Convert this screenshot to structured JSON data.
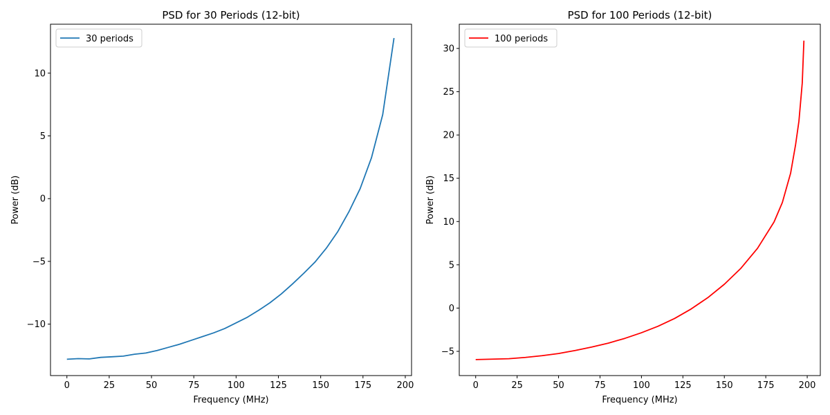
{
  "chart_data": [
    {
      "type": "line",
      "title": "PSD for 30 Periods (12-bit)",
      "xlabel": "Frequency (MHz)",
      "ylabel": "Power (dB)",
      "xlim": [
        -9.7,
        203.7
      ],
      "ylim": [
        -14.1,
        13.9
      ],
      "xticks": [
        0,
        25,
        50,
        75,
        100,
        125,
        150,
        175,
        200
      ],
      "yticks": [
        -10,
        -5,
        0,
        5,
        10
      ],
      "xtick_labels": [
        "0",
        "25",
        "50",
        "75",
        "100",
        "125",
        "150",
        "175",
        "200"
      ],
      "ytick_labels": [
        "−10",
        "−5",
        "0",
        "5",
        "10"
      ],
      "grid": false,
      "legend": "upper-left",
      "series": [
        {
          "name": "30 periods",
          "color": "#1f77b4",
          "x": [
            0,
            6.67,
            13.33,
            20,
            26.67,
            33.33,
            40,
            46.67,
            53.33,
            60,
            66.67,
            73.33,
            80,
            86.67,
            93.33,
            100,
            106.67,
            113.33,
            120,
            126.67,
            133.33,
            140,
            146.67,
            153.33,
            160,
            166.67,
            173.33,
            180,
            186.67,
            193.33
          ],
          "y": [
            -12.8,
            -12.75,
            -12.77,
            -12.65,
            -12.6,
            -12.55,
            -12.4,
            -12.3,
            -12.1,
            -11.85,
            -11.6,
            -11.3,
            -11.0,
            -10.7,
            -10.35,
            -9.9,
            -9.45,
            -8.9,
            -8.3,
            -7.6,
            -6.8,
            -5.95,
            -5.05,
            -3.95,
            -2.65,
            -1.05,
            0.8,
            3.25,
            6.7,
            12.8
          ]
        }
      ]
    },
    {
      "type": "line",
      "title": "PSD for 100 Periods (12-bit)",
      "xlabel": "Frequency (MHz)",
      "ylabel": "Power (dB)",
      "xlim": [
        -9.9,
        207.9
      ],
      "ylim": [
        -7.8,
        32.8
      ],
      "xticks": [
        0,
        25,
        50,
        75,
        100,
        125,
        150,
        175,
        200
      ],
      "yticks": [
        -5,
        0,
        5,
        10,
        15,
        20,
        25,
        30
      ],
      "xtick_labels": [
        "0",
        "25",
        "50",
        "75",
        "100",
        "125",
        "150",
        "175",
        "200"
      ],
      "ytick_labels": [
        "−5",
        "0",
        "5",
        "10",
        "15",
        "20",
        "25",
        "30"
      ],
      "grid": false,
      "legend": "upper-left",
      "series": [
        {
          "name": "100 periods",
          "color": "#ff0000",
          "x": [
            0,
            10,
            20,
            30,
            40,
            50,
            60,
            70,
            80,
            90,
            100,
            110,
            120,
            130,
            140,
            150,
            160,
            170,
            180,
            185,
            190,
            193,
            195,
            197,
            198
          ],
          "y": [
            -5.95,
            -5.9,
            -5.85,
            -5.7,
            -5.5,
            -5.25,
            -4.9,
            -4.5,
            -4.05,
            -3.5,
            -2.85,
            -2.1,
            -1.2,
            -0.1,
            1.2,
            2.75,
            4.6,
            6.9,
            9.95,
            12.2,
            15.6,
            18.9,
            21.6,
            26.0,
            30.9
          ]
        }
      ]
    }
  ]
}
